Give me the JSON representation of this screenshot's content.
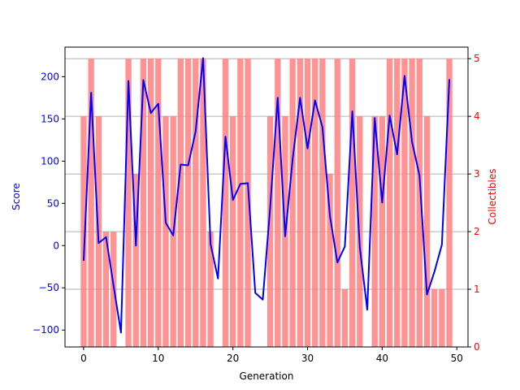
{
  "chart_data": {
    "type": "bar+line",
    "title": "",
    "xlabel": "Generation",
    "y_left_label": "Score",
    "y_right_label": "Collectibles",
    "xlim": [
      -2.5,
      51.5
    ],
    "y_left_lim": [
      -120,
      235
    ],
    "y_right_lim": [
      0,
      5.2
    ],
    "x_ticks": [
      0,
      10,
      20,
      30,
      40,
      50
    ],
    "y_left_ticks": [
      -100,
      -50,
      0,
      50,
      100,
      150,
      200
    ],
    "y_right_ticks": [
      0,
      1,
      2,
      3,
      4,
      5
    ],
    "grid": "horizontal lines at right-axis ticks",
    "colors": {
      "line": "#0000ff",
      "bars": "#ff8080",
      "left_axis": "#0000ff",
      "right_axis": "#ff0000",
      "grid": "#b0b0b0"
    },
    "x": [
      0,
      1,
      2,
      3,
      4,
      5,
      6,
      7,
      8,
      9,
      10,
      11,
      12,
      13,
      14,
      15,
      16,
      17,
      18,
      19,
      20,
      21,
      22,
      23,
      24,
      25,
      26,
      27,
      28,
      29,
      30,
      31,
      32,
      33,
      34,
      35,
      36,
      37,
      38,
      39,
      40,
      41,
      42,
      43,
      44,
      45,
      46,
      47,
      48,
      49
    ],
    "series": [
      {
        "kind": "bar",
        "axis": "right",
        "values": [
          4,
          5,
          4,
          2,
          2,
          0,
          5,
          3,
          5,
          5,
          5,
          4,
          4,
          5,
          5,
          5,
          5,
          2,
          0,
          5,
          4,
          5,
          5,
          0,
          0,
          4,
          5,
          4,
          5,
          5,
          5,
          5,
          5,
          3,
          5,
          1,
          5,
          4,
          0,
          4,
          4,
          5,
          5,
          5,
          5,
          5,
          4,
          1,
          1,
          5
        ]
      },
      {
        "kind": "line",
        "axis": "left",
        "values": [
          -18,
          181,
          3,
          10,
          -47,
          -103,
          195,
          0,
          196,
          157,
          168,
          27,
          12,
          96,
          95,
          135,
          222,
          2,
          -39,
          129,
          54,
          73,
          74,
          -56,
          -64,
          46,
          175,
          11,
          102,
          175,
          115,
          172,
          140,
          35,
          -20,
          -1,
          159,
          -2,
          -76,
          151,
          51,
          154,
          108,
          201,
          123,
          83,
          -58,
          -31,
          1,
          197
        ]
      }
    ]
  }
}
